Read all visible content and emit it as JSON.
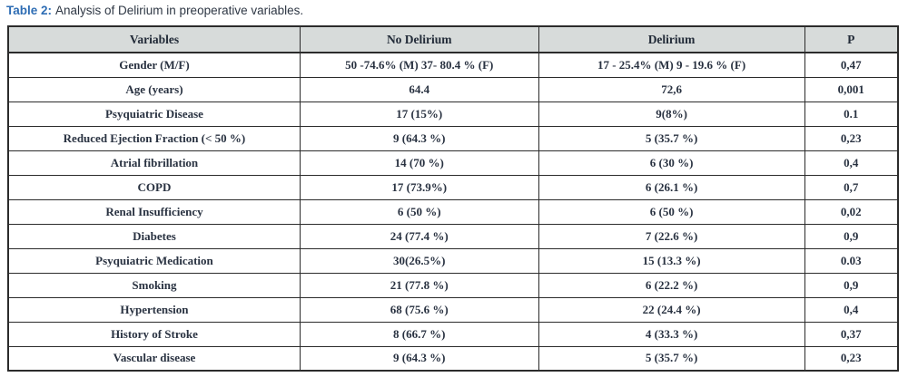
{
  "caption": {
    "label": "Table 2:",
    "text": "Analysis of Delirium in preoperative variables."
  },
  "table": {
    "headers": [
      "Variables",
      "No Delirium",
      "Delirium",
      "P"
    ],
    "rows": [
      [
        "Gender (M/F)",
        "50 -74.6% (M) 37- 80.4 % (F)",
        "17 - 25.4% (M) 9 - 19.6 % (F)",
        "0,47"
      ],
      [
        "Age (years)",
        "64.4",
        "72,6",
        "0,001"
      ],
      [
        "Psyquiatric Disease",
        "17 (15%)",
        "9(8%)",
        "0.1"
      ],
      [
        "Reduced Ejection Fraction (< 50 %)",
        "9 (64.3 %)",
        "5 (35.7 %)",
        "0,23"
      ],
      [
        "Atrial fibrillation",
        "14 (70 %)",
        "6 (30 %)",
        "0,4"
      ],
      [
        "COPD",
        "17 (73.9%)",
        "6 (26.1 %)",
        "0,7"
      ],
      [
        "Renal Insufficiency",
        "6 (50 %)",
        "6 (50 %)",
        "0,02"
      ],
      [
        "Diabetes",
        "24 (77.4 %)",
        "7 (22.6 %)",
        "0,9"
      ],
      [
        "Psyquiatric Medication",
        "30(26.5%)",
        "15 (13.3 %)",
        "0.03"
      ],
      [
        "Smoking",
        "21 (77.8 %)",
        "6 (22.2 %)",
        "0,9"
      ],
      [
        "Hypertension",
        "68 (75.6 %)",
        "22 (24.4 %)",
        "0,4"
      ],
      [
        "History of Stroke",
        "8 (66.7 %)",
        "4 (33.3 %)",
        "0,37"
      ],
      [
        "Vascular disease",
        "9 (64.3 %)",
        "5 (35.7 %)",
        "0,23"
      ]
    ]
  },
  "colors": {
    "caption_accent": "#2e6db4",
    "caption_text": "#2e3744",
    "table_text": "#293241",
    "header_background": "#d7dbda",
    "border": "#2b2b2b"
  }
}
